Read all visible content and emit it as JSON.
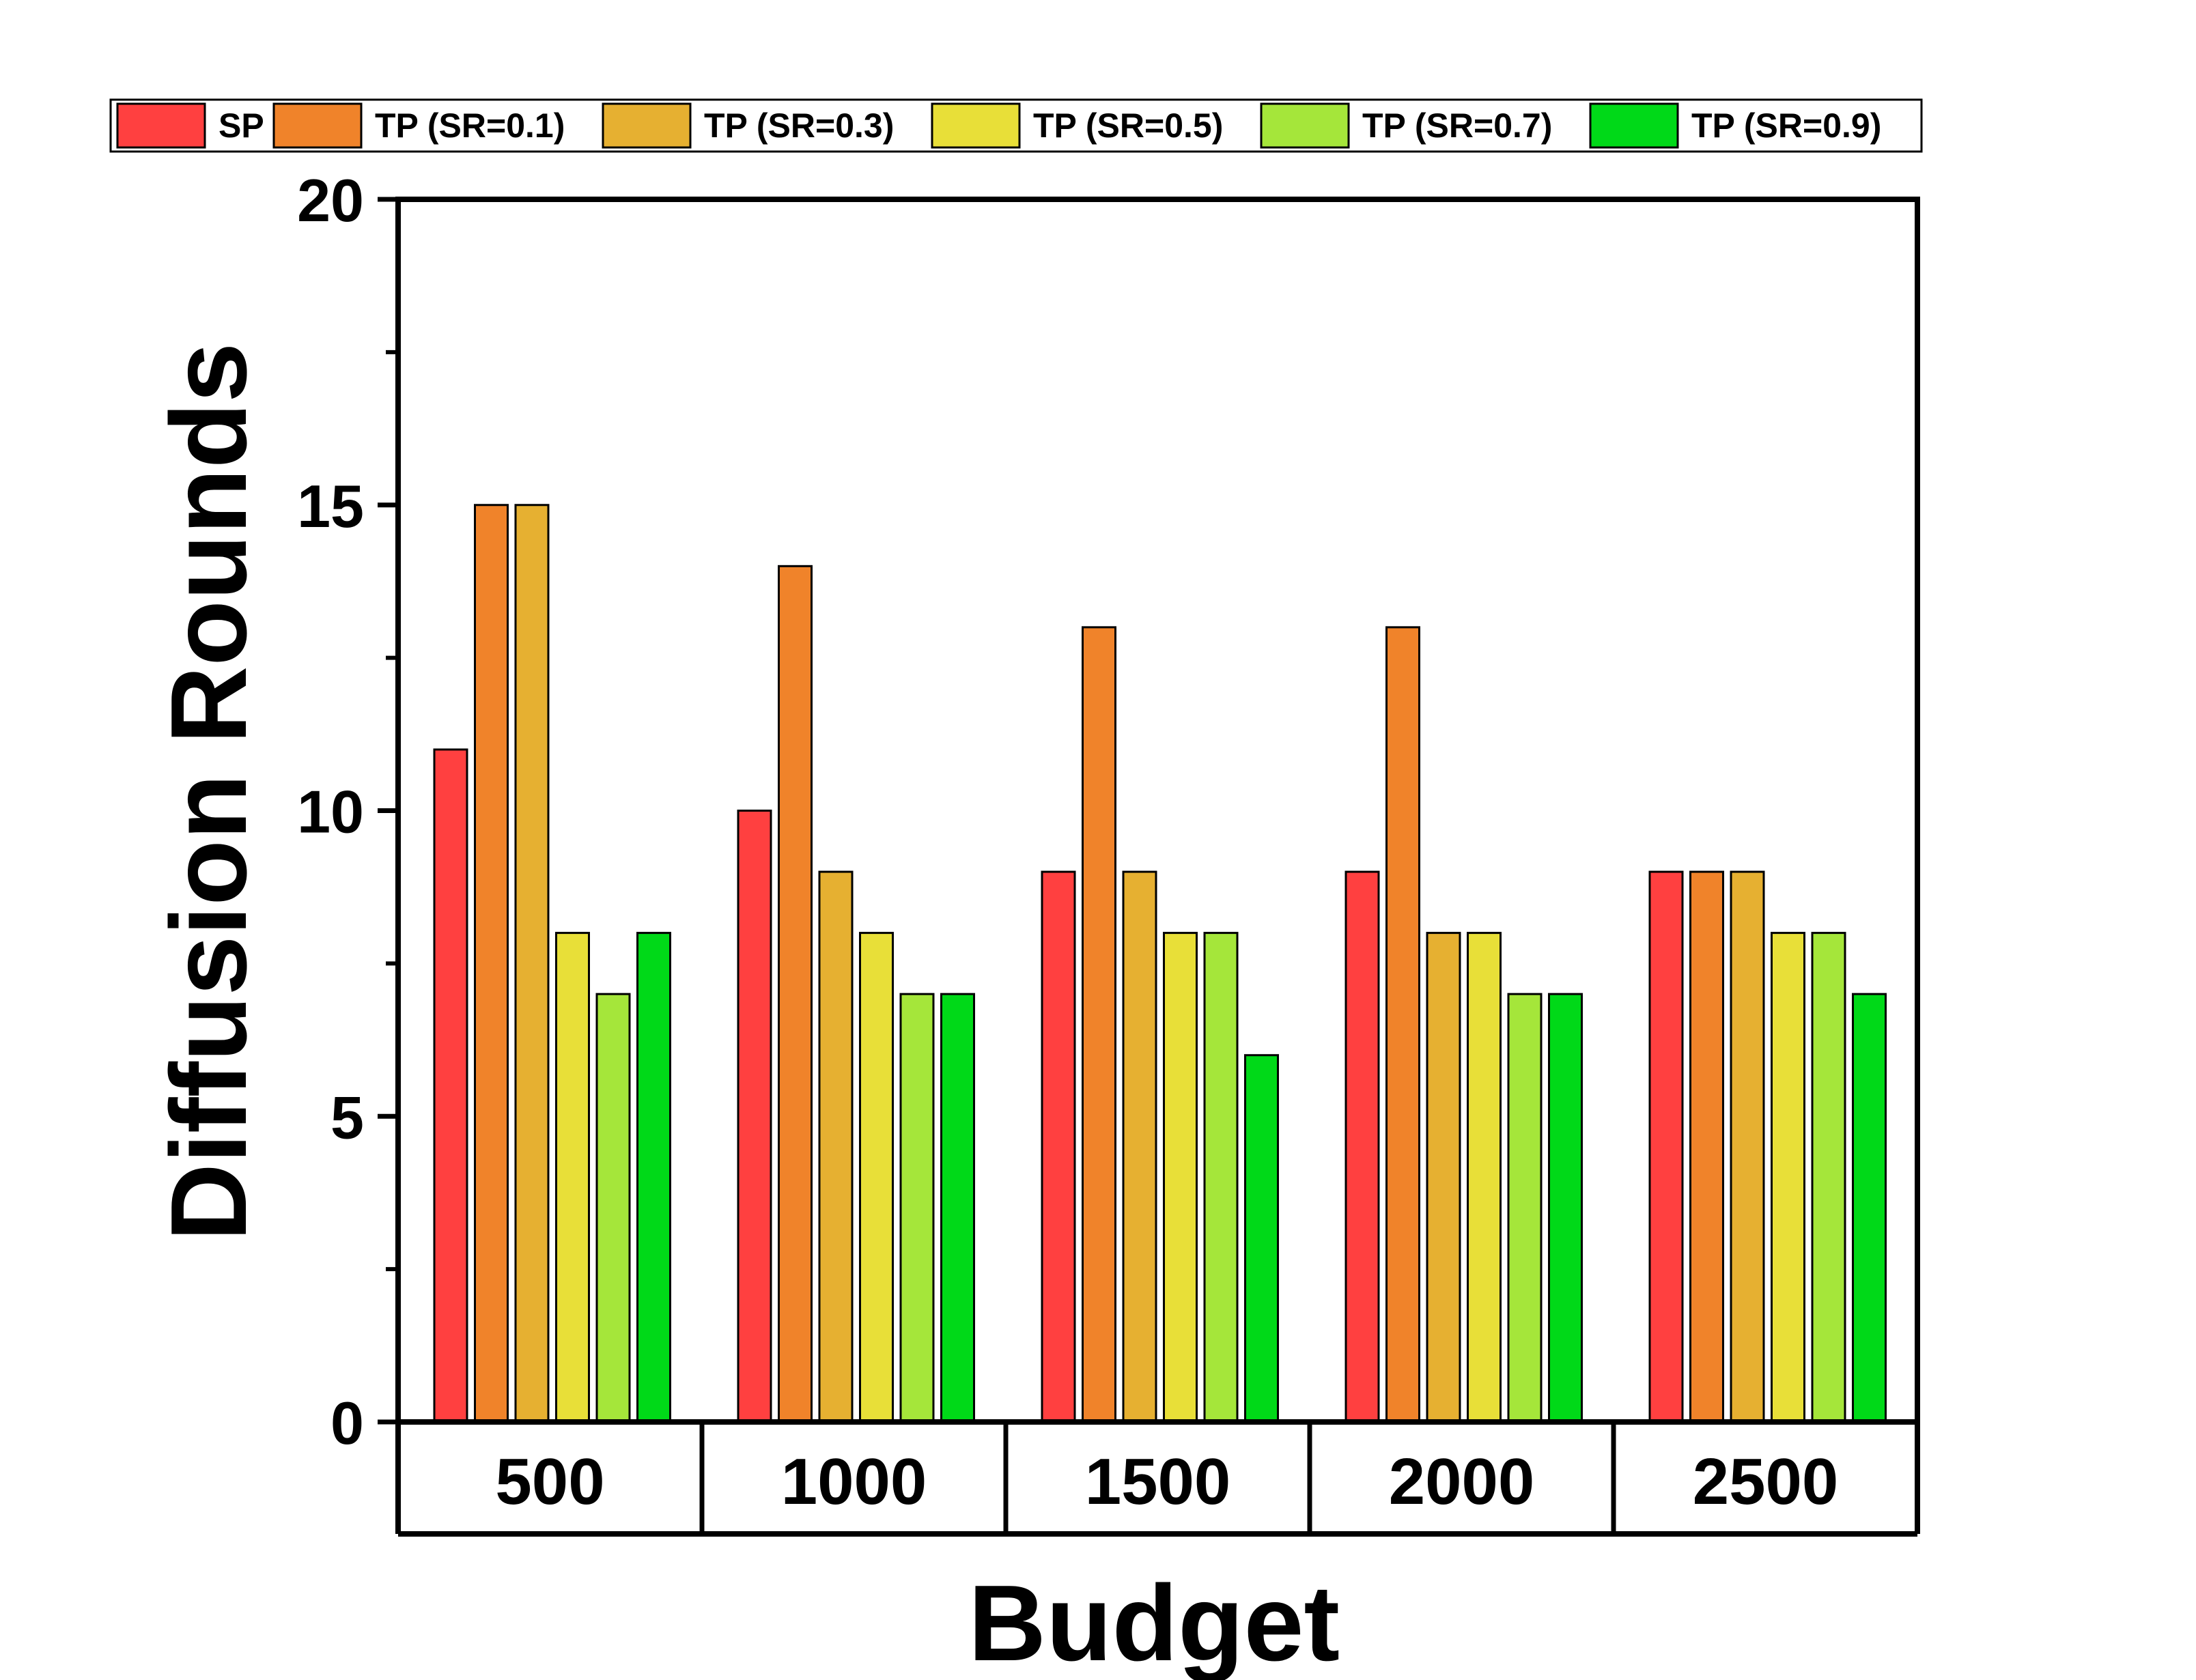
{
  "chart_data": {
    "type": "bar",
    "title": "",
    "xlabel": "Budget",
    "ylabel": "Diffusion Rounds",
    "ylim": [
      0,
      20
    ],
    "yticks": [
      "0",
      "5",
      "10",
      "15",
      "20"
    ],
    "grid": false,
    "legend_position": "top",
    "categories": [
      "500",
      "1000",
      "1500",
      "2000",
      "2500"
    ],
    "series": [
      {
        "name": "SP",
        "color": "#FF4040",
        "values": [
          11,
          10,
          9,
          9,
          9
        ]
      },
      {
        "name": "TP (SR=0.1)",
        "color": "#F0832A",
        "values": [
          15,
          14,
          13,
          13,
          9
        ]
      },
      {
        "name": "TP (SR=0.3)",
        "color": "#E6B031",
        "values": [
          15,
          9,
          9,
          8,
          9
        ]
      },
      {
        "name": "TP (SR=0.5)",
        "color": "#E8DF38",
        "values": [
          8,
          8,
          8,
          8,
          8
        ]
      },
      {
        "name": "TP (SR=0.7)",
        "color": "#A5E63A",
        "values": [
          7,
          7,
          8,
          7,
          8
        ]
      },
      {
        "name": "TP (SR=0.9)",
        "color": "#00D918",
        "values": [
          8,
          7,
          6,
          7,
          7
        ]
      }
    ]
  }
}
